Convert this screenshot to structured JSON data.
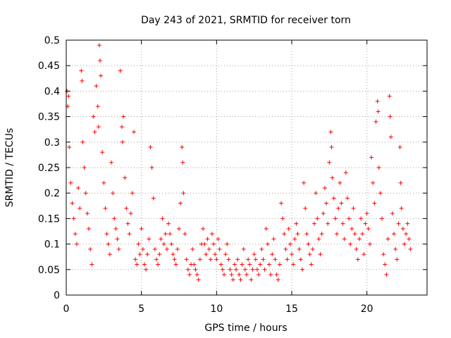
{
  "chart_data": {
    "type": "scatter",
    "title": "Day 243 of 2021, SRMTID for receiver torn",
    "xlabel": "GPS time / hours",
    "ylabel": "SRMTID / TECUs",
    "xlim": [
      0,
      24
    ],
    "ylim": [
      0,
      0.5
    ],
    "xticks": [
      0,
      5,
      10,
      15,
      20
    ],
    "xtick_labels": [
      "0",
      "5",
      "10",
      "15",
      "20"
    ],
    "yticks": [
      0,
      0.05,
      0.1,
      0.15,
      0.2,
      0.25,
      0.3,
      0.35,
      0.4,
      0.45,
      0.5
    ],
    "ytick_labels": [
      "0",
      "0.05",
      "0.1",
      "0.15",
      "0.2",
      "0.25",
      "0.3",
      "0.35",
      "0.4",
      "0.45",
      "0.5"
    ],
    "grid": true,
    "marker": "+",
    "series_color": "#ff0000",
    "points": [
      [
        0.05,
        0.4
      ],
      [
        0.1,
        0.37
      ],
      [
        0.15,
        0.39
      ],
      [
        0.2,
        0.29
      ],
      [
        0.3,
        0.22
      ],
      [
        0.4,
        0.18
      ],
      [
        0.5,
        0.15
      ],
      [
        0.6,
        0.12
      ],
      [
        0.7,
        0.1
      ],
      [
        0.8,
        0.21
      ],
      [
        0.9,
        0.17
      ],
      [
        1.0,
        0.44
      ],
      [
        1.05,
        0.42
      ],
      [
        1.1,
        0.3
      ],
      [
        1.2,
        0.25
      ],
      [
        1.3,
        0.2
      ],
      [
        1.4,
        0.16
      ],
      [
        1.5,
        0.13
      ],
      [
        1.6,
        0.09
      ],
      [
        1.7,
        0.06
      ],
      [
        1.8,
        0.35
      ],
      [
        1.9,
        0.32
      ],
      [
        2.0,
        0.41
      ],
      [
        2.1,
        0.37
      ],
      [
        2.15,
        0.33
      ],
      [
        2.2,
        0.49
      ],
      [
        2.25,
        0.46
      ],
      [
        2.3,
        0.43
      ],
      [
        2.4,
        0.28
      ],
      [
        2.5,
        0.22
      ],
      [
        2.6,
        0.17
      ],
      [
        2.7,
        0.12
      ],
      [
        2.8,
        0.1
      ],
      [
        2.9,
        0.08
      ],
      [
        3.0,
        0.26
      ],
      [
        3.1,
        0.2
      ],
      [
        3.2,
        0.15
      ],
      [
        3.3,
        0.13
      ],
      [
        3.4,
        0.11
      ],
      [
        3.5,
        0.09
      ],
      [
        3.6,
        0.44
      ],
      [
        3.7,
        0.33
      ],
      [
        3.75,
        0.3
      ],
      [
        3.8,
        0.35
      ],
      [
        3.9,
        0.23
      ],
      [
        4.0,
        0.17
      ],
      [
        4.1,
        0.14
      ],
      [
        4.2,
        0.12
      ],
      [
        4.3,
        0.16
      ],
      [
        4.4,
        0.2
      ],
      [
        4.5,
        0.32
      ],
      [
        4.6,
        0.07
      ],
      [
        4.7,
        0.06
      ],
      [
        4.8,
        0.1
      ],
      [
        4.9,
        0.08
      ],
      [
        5.0,
        0.13
      ],
      [
        5.1,
        0.09
      ],
      [
        5.2,
        0.06
      ],
      [
        5.3,
        0.05
      ],
      [
        5.4,
        0.08
      ],
      [
        5.5,
        0.11
      ],
      [
        5.6,
        0.29
      ],
      [
        5.7,
        0.25
      ],
      [
        5.8,
        0.19
      ],
      [
        5.9,
        0.09
      ],
      [
        6.0,
        0.07
      ],
      [
        6.1,
        0.06
      ],
      [
        6.2,
        0.08
      ],
      [
        6.3,
        0.11
      ],
      [
        6.4,
        0.15
      ],
      [
        6.5,
        0.1
      ],
      [
        6.6,
        0.12
      ],
      [
        6.7,
        0.09
      ],
      [
        6.8,
        0.14
      ],
      [
        6.9,
        0.12
      ],
      [
        7.0,
        0.1
      ],
      [
        7.1,
        0.08
      ],
      [
        7.2,
        0.07
      ],
      [
        7.3,
        0.06
      ],
      [
        7.4,
        0.09
      ],
      [
        7.5,
        0.13
      ],
      [
        7.6,
        0.18
      ],
      [
        7.7,
        0.29
      ],
      [
        7.75,
        0.26
      ],
      [
        7.8,
        0.2
      ],
      [
        7.9,
        0.12
      ],
      [
        8.0,
        0.07
      ],
      [
        8.1,
        0.05
      ],
      [
        8.2,
        0.04
      ],
      [
        8.3,
        0.06
      ],
      [
        8.4,
        0.09
      ],
      [
        8.5,
        0.06
      ],
      [
        8.6,
        0.05
      ],
      [
        8.7,
        0.04
      ],
      [
        8.8,
        0.03
      ],
      [
        8.9,
        0.07
      ],
      [
        9.0,
        0.1
      ],
      [
        9.1,
        0.13
      ],
      [
        9.2,
        0.1
      ],
      [
        9.3,
        0.08
      ],
      [
        9.4,
        0.11
      ],
      [
        9.5,
        0.09
      ],
      [
        9.6,
        0.07
      ],
      [
        9.7,
        0.12
      ],
      [
        9.8,
        0.1
      ],
      [
        9.9,
        0.08
      ],
      [
        10.0,
        0.07
      ],
      [
        10.1,
        0.11
      ],
      [
        10.2,
        0.09
      ],
      [
        10.3,
        0.06
      ],
      [
        10.4,
        0.05
      ],
      [
        10.5,
        0.04
      ],
      [
        10.6,
        0.08
      ],
      [
        10.7,
        0.1
      ],
      [
        10.8,
        0.07
      ],
      [
        10.9,
        0.05
      ],
      [
        11.0,
        0.04
      ],
      [
        11.1,
        0.03
      ],
      [
        11.2,
        0.06
      ],
      [
        11.3,
        0.05
      ],
      [
        11.4,
        0.07
      ],
      [
        11.5,
        0.04
      ],
      [
        11.6,
        0.03
      ],
      [
        11.7,
        0.06
      ],
      [
        11.8,
        0.09
      ],
      [
        11.9,
        0.05
      ],
      [
        12.0,
        0.04
      ],
      [
        12.1,
        0.07
      ],
      [
        12.2,
        0.06
      ],
      [
        12.3,
        0.03
      ],
      [
        12.4,
        0.05
      ],
      [
        12.5,
        0.08
      ],
      [
        12.6,
        0.07
      ],
      [
        12.7,
        0.05
      ],
      [
        12.8,
        0.04
      ],
      [
        12.9,
        0.06
      ],
      [
        13.0,
        0.09
      ],
      [
        13.1,
        0.07
      ],
      [
        13.2,
        0.05
      ],
      [
        13.3,
        0.13
      ],
      [
        13.4,
        0.1
      ],
      [
        13.5,
        0.06
      ],
      [
        13.6,
        0.04
      ],
      [
        13.7,
        0.08
      ],
      [
        13.8,
        0.11
      ],
      [
        13.9,
        0.07
      ],
      [
        14.0,
        0.04
      ],
      [
        14.1,
        0.03
      ],
      [
        14.2,
        0.06
      ],
      [
        14.3,
        0.18
      ],
      [
        14.4,
        0.15
      ],
      [
        14.5,
        0.12
      ],
      [
        14.6,
        0.09
      ],
      [
        14.7,
        0.07
      ],
      [
        14.8,
        0.13
      ],
      [
        14.9,
        0.1
      ],
      [
        15.0,
        0.08
      ],
      [
        15.1,
        0.06
      ],
      [
        15.2,
        0.11
      ],
      [
        15.3,
        0.14
      ],
      [
        15.4,
        0.12
      ],
      [
        15.5,
        0.09
      ],
      [
        15.6,
        0.07
      ],
      [
        15.7,
        0.05
      ],
      [
        15.8,
        0.22
      ],
      [
        15.9,
        0.17
      ],
      [
        16.0,
        0.12
      ],
      [
        16.1,
        0.1
      ],
      [
        16.2,
        0.08
      ],
      [
        16.3,
        0.06
      ],
      [
        16.4,
        0.09
      ],
      [
        16.5,
        0.14
      ],
      [
        16.6,
        0.2
      ],
      [
        16.7,
        0.15
      ],
      [
        16.8,
        0.11
      ],
      [
        16.9,
        0.08
      ],
      [
        17.0,
        0.12
      ],
      [
        17.1,
        0.16
      ],
      [
        17.2,
        0.21
      ],
      [
        17.3,
        0.18
      ],
      [
        17.4,
        0.14
      ],
      [
        17.5,
        0.26
      ],
      [
        17.6,
        0.32
      ],
      [
        17.65,
        0.29
      ],
      [
        17.7,
        0.23
      ],
      [
        17.8,
        0.19
      ],
      [
        17.9,
        0.15
      ],
      [
        18.0,
        0.12
      ],
      [
        18.1,
        0.17
      ],
      [
        18.2,
        0.22
      ],
      [
        18.3,
        0.18
      ],
      [
        18.4,
        0.14
      ],
      [
        18.5,
        0.11
      ],
      [
        18.6,
        0.24
      ],
      [
        18.7,
        0.19
      ],
      [
        18.8,
        0.15
      ],
      [
        18.9,
        0.1
      ],
      [
        19.0,
        0.13
      ],
      [
        19.1,
        0.17
      ],
      [
        19.2,
        0.12
      ],
      [
        19.3,
        0.09
      ],
      [
        19.4,
        0.07
      ],
      [
        19.5,
        0.11
      ],
      [
        19.6,
        0.15
      ],
      [
        19.7,
        0.12
      ],
      [
        19.8,
        0.08
      ],
      [
        19.9,
        0.14
      ],
      [
        20.0,
        0.16
      ],
      [
        20.1,
        0.13
      ],
      [
        20.2,
        0.1
      ],
      [
        20.3,
        0.27
      ],
      [
        20.4,
        0.22
      ],
      [
        20.5,
        0.18
      ],
      [
        20.6,
        0.34
      ],
      [
        20.7,
        0.38
      ],
      [
        20.75,
        0.36
      ],
      [
        20.8,
        0.25
      ],
      [
        20.9,
        0.2
      ],
      [
        21.0,
        0.15
      ],
      [
        21.1,
        0.08
      ],
      [
        21.2,
        0.06
      ],
      [
        21.3,
        0.04
      ],
      [
        21.4,
        0.11
      ],
      [
        21.5,
        0.39
      ],
      [
        21.55,
        0.35
      ],
      [
        21.6,
        0.31
      ],
      [
        21.7,
        0.16
      ],
      [
        21.8,
        0.12
      ],
      [
        21.9,
        0.09
      ],
      [
        22.0,
        0.07
      ],
      [
        22.1,
        0.14
      ],
      [
        22.2,
        0.29
      ],
      [
        22.25,
        0.22
      ],
      [
        22.3,
        0.17
      ],
      [
        22.4,
        0.13
      ],
      [
        22.5,
        0.1
      ],
      [
        22.6,
        0.12
      ],
      [
        22.7,
        0.14
      ],
      [
        22.8,
        0.11
      ],
      [
        22.9,
        0.09
      ]
    ]
  }
}
